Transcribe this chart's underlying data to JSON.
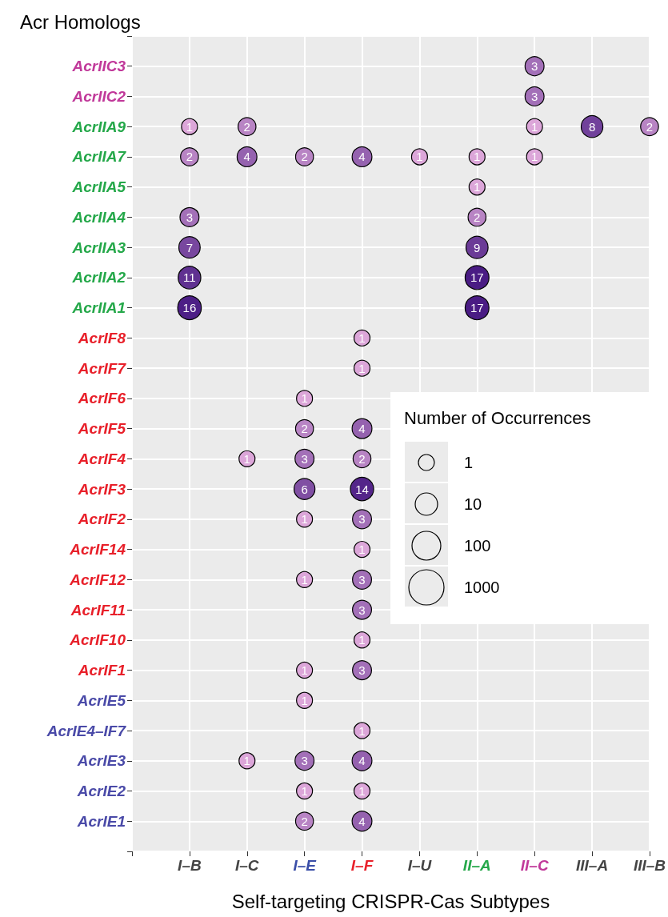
{
  "chart_data": {
    "type": "heatmap",
    "title": "Acr Homologs",
    "xlabel": "Self-targeting CRISPR-Cas Subtypes",
    "legend_title": "Number of Occurrences",
    "categories": [
      "I–B",
      "I–C",
      "I–E",
      "I–F",
      "I–U",
      "II–A",
      "II–C",
      "III–A",
      "III–B"
    ],
    "y_categories": [
      "AcrIIC3",
      "AcrIIC2",
      "AcrIIA9",
      "AcrIIA7",
      "AcrIIA5",
      "AcrIIA4",
      "AcrIIA3",
      "AcrIIA2",
      "AcrIIA1",
      "AcrIF8",
      "AcrIF7",
      "AcrIF6",
      "AcrIF5",
      "AcrIF4",
      "AcrIF3",
      "AcrIF2",
      "AcrIF14",
      "AcrIF12",
      "AcrIF11",
      "AcrIF10",
      "AcrIF1",
      "AcrIE5",
      "AcrIE4–IF7",
      "AcrIE3",
      "AcrIE2",
      "AcrIE1"
    ],
    "cells": [
      [
        null,
        null,
        null,
        null,
        null,
        null,
        3,
        null,
        null
      ],
      [
        null,
        null,
        null,
        null,
        null,
        null,
        3,
        null,
        null
      ],
      [
        1,
        2,
        null,
        null,
        null,
        null,
        1,
        8,
        2
      ],
      [
        2,
        4,
        2,
        4,
        1,
        1,
        1,
        null,
        null
      ],
      [
        null,
        null,
        null,
        null,
        null,
        1,
        null,
        null,
        null
      ],
      [
        3,
        null,
        null,
        null,
        null,
        2,
        null,
        null,
        null
      ],
      [
        7,
        null,
        null,
        null,
        null,
        9,
        null,
        null,
        null
      ],
      [
        11,
        null,
        null,
        null,
        null,
        17,
        null,
        null,
        null
      ],
      [
        16,
        null,
        null,
        null,
        null,
        17,
        null,
        null,
        null
      ],
      [
        null,
        null,
        null,
        1,
        null,
        null,
        null,
        null,
        null
      ],
      [
        null,
        null,
        null,
        1,
        null,
        null,
        null,
        null,
        null
      ],
      [
        null,
        null,
        1,
        null,
        null,
        null,
        null,
        null,
        null
      ],
      [
        null,
        null,
        2,
        4,
        null,
        null,
        null,
        null,
        null
      ],
      [
        null,
        1,
        3,
        2,
        null,
        null,
        null,
        null,
        null
      ],
      [
        null,
        null,
        6,
        14,
        null,
        null,
        null,
        null,
        null
      ],
      [
        null,
        null,
        1,
        3,
        null,
        null,
        null,
        null,
        null
      ],
      [
        null,
        null,
        null,
        1,
        null,
        null,
        null,
        null,
        null
      ],
      [
        null,
        null,
        1,
        3,
        null,
        null,
        null,
        null,
        null
      ],
      [
        null,
        null,
        null,
        3,
        null,
        null,
        null,
        null,
        null
      ],
      [
        null,
        null,
        null,
        1,
        null,
        null,
        null,
        null,
        null
      ],
      [
        null,
        null,
        1,
        3,
        null,
        null,
        null,
        null,
        null
      ],
      [
        null,
        null,
        1,
        null,
        null,
        null,
        null,
        null,
        null
      ],
      [
        null,
        null,
        null,
        1,
        null,
        null,
        null,
        null,
        null
      ],
      [
        null,
        1,
        3,
        4,
        null,
        null,
        null,
        null,
        null
      ],
      [
        null,
        null,
        1,
        1,
        null,
        null,
        null,
        null,
        null
      ],
      [
        null,
        null,
        2,
        4,
        null,
        null,
        null,
        null,
        null
      ]
    ],
    "colors": [
      "#dca6d9",
      "#4a1c84"
    ],
    "annotations": [
      "1",
      "10",
      "100",
      "1000"
    ],
    "data_labels": true,
    "grid": true
  }
}
